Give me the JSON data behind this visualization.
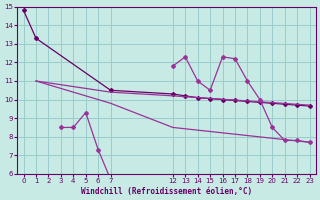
{
  "bg_color": "#c8eae4",
  "grid_color": "#99cccc",
  "line_color": "#993399",
  "line_color2": "#660066",
  "ylim": [
    6,
    15
  ],
  "xlim": [
    -0.5,
    23.5
  ],
  "yticks": [
    6,
    7,
    8,
    9,
    10,
    11,
    12,
    13,
    14,
    15
  ],
  "xticks": [
    0,
    1,
    2,
    3,
    4,
    5,
    6,
    7,
    12,
    13,
    14,
    15,
    16,
    17,
    18,
    19,
    20,
    21,
    22,
    23
  ],
  "xlabel": "Windchill (Refroidissement éolien,°C)",
  "line1_x": [
    0,
    1,
    7,
    12,
    13,
    14,
    15,
    16,
    17,
    18,
    19,
    20,
    21,
    22,
    23
  ],
  "line1_y": [
    14.8,
    13.3,
    10.5,
    10.3,
    10.2,
    10.1,
    10.05,
    10.0,
    9.95,
    9.9,
    9.85,
    9.8,
    9.75,
    9.7,
    9.65
  ],
  "line2_x": [
    1,
    7,
    12,
    23
  ],
  "line2_y": [
    11.0,
    10.4,
    10.2,
    9.7
  ],
  "line3_x": [
    1,
    7,
    12,
    23
  ],
  "line3_y": [
    11.0,
    9.8,
    8.5,
    7.7
  ],
  "line4_x": [
    3,
    4,
    5,
    6,
    7
  ],
  "line4_y": [
    8.5,
    8.5,
    9.3,
    7.3,
    5.7
  ],
  "line5_x": [
    12,
    13,
    14,
    15,
    16,
    17,
    18,
    19,
    20,
    21,
    22,
    23
  ],
  "line5_y": [
    11.8,
    12.3,
    11.0,
    10.5,
    12.3,
    12.2,
    11.0,
    10.0,
    8.5,
    7.8,
    7.8,
    7.7
  ]
}
